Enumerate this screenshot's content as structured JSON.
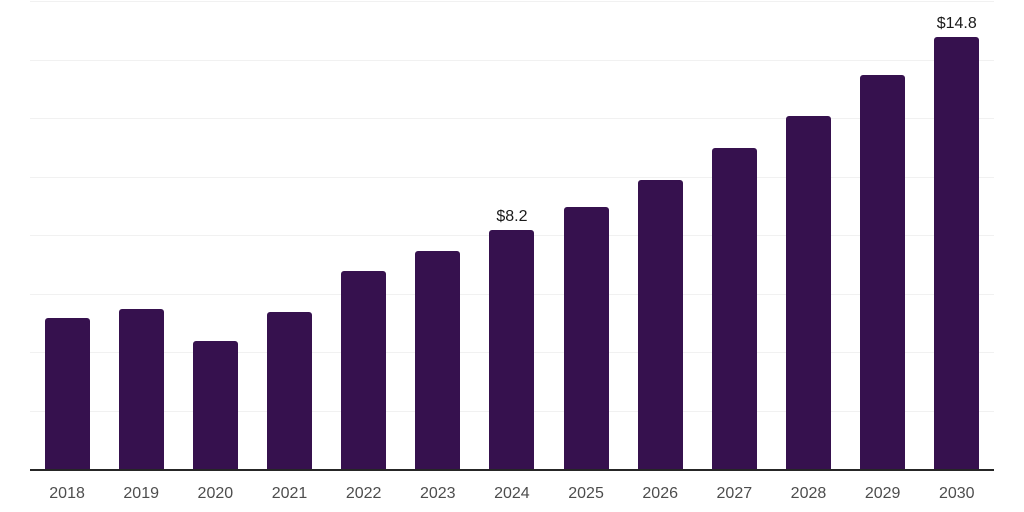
{
  "chart_data": {
    "type": "bar",
    "title": "",
    "xlabel": "",
    "ylabel": "",
    "categories": [
      "2018",
      "2019",
      "2020",
      "2021",
      "2022",
      "2023",
      "2024",
      "2025",
      "2026",
      "2027",
      "2028",
      "2029",
      "2030"
    ],
    "values": [
      5.2,
      5.5,
      4.4,
      5.4,
      6.8,
      7.5,
      8.2,
      9.0,
      9.9,
      11.0,
      12.1,
      13.5,
      14.8
    ],
    "data_labels": {
      "2024": "$8.2",
      "2030": "$14.8"
    },
    "ylim": [
      0,
      16
    ],
    "gridline_step": 2,
    "grid": true,
    "legend": "none",
    "colors": {
      "bar": "#36114E",
      "gridline": "#F1F1F1",
      "axis_line": "#262626",
      "tick_label": "#4D4D4D",
      "data_label": "#1A1A1A",
      "background": "#FFFFFF"
    }
  }
}
